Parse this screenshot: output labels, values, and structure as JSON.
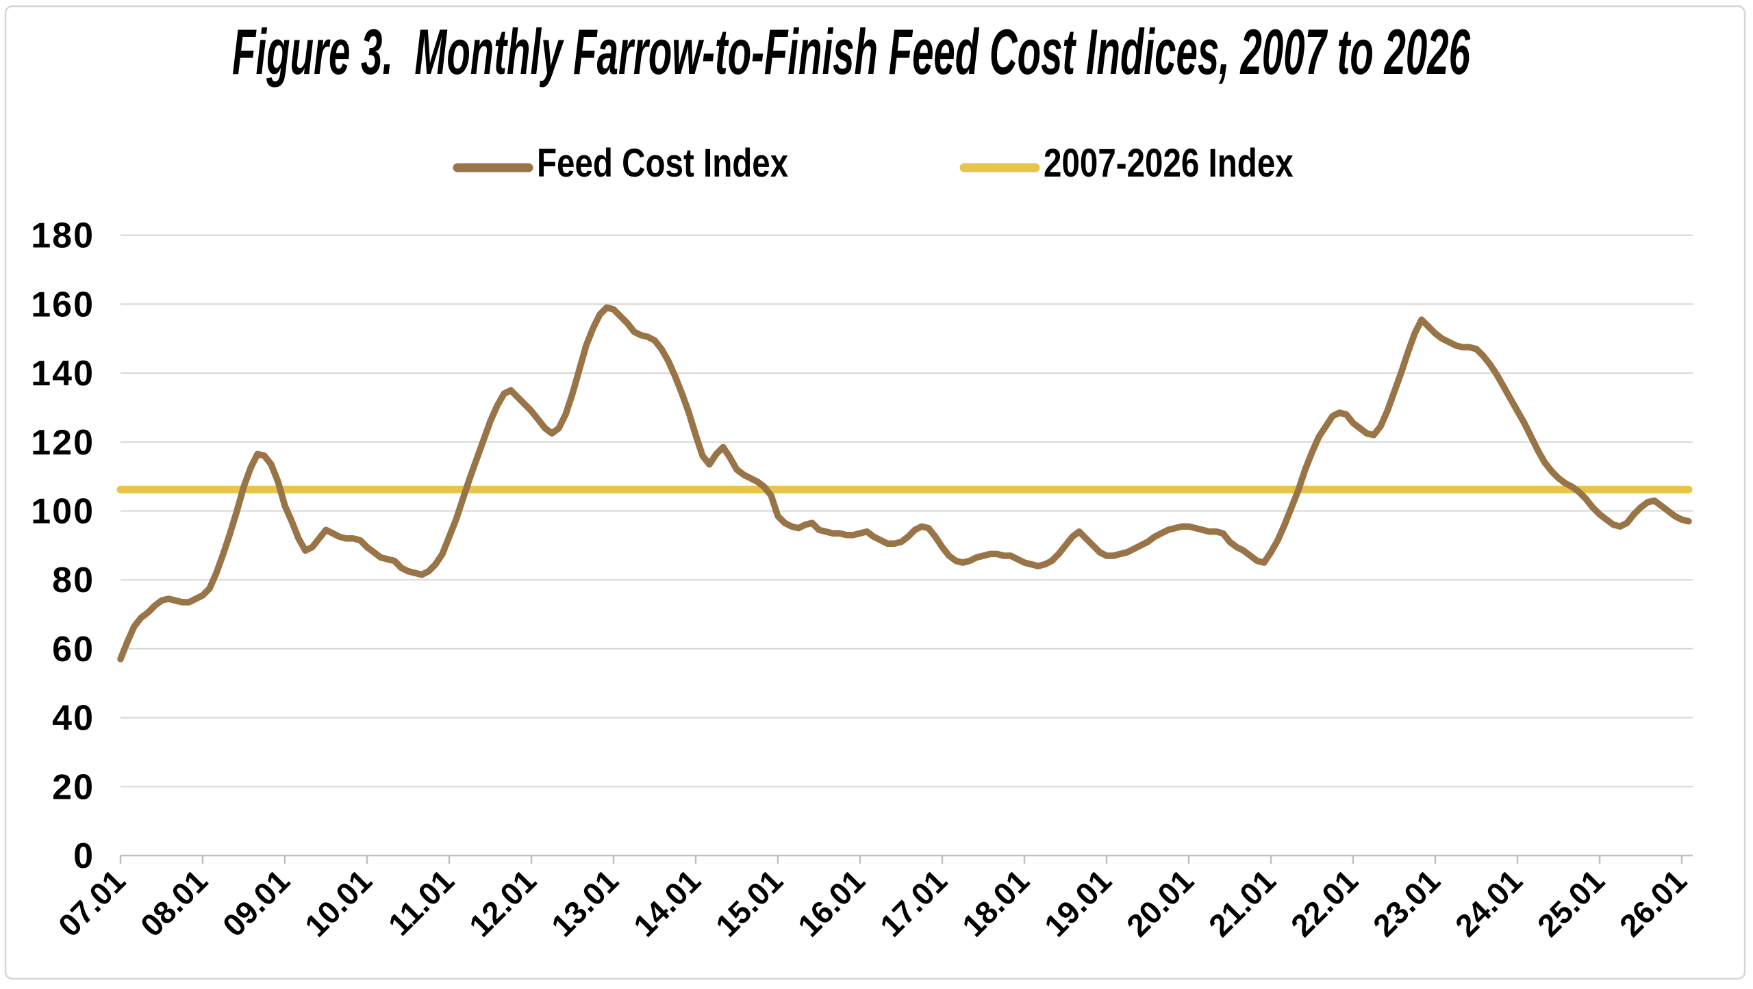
{
  "figure": {
    "title": "Figure 3.  Monthly Farrow-to-Finish Feed Cost Indices, 2007 to 2026"
  },
  "legend": {
    "items": [
      {
        "label": "Feed Cost Index",
        "swatch": "line-swatch",
        "color": "#997447"
      },
      {
        "label": "2007-2026 Index",
        "swatch": "line-swatch",
        "color": "#E7C44A"
      }
    ]
  },
  "colors": {
    "series_feed_cost": "#997447",
    "series_average": "#E7C44A",
    "gridline": "#D9D9D9",
    "axis": "#BFBFBF",
    "frame_border": "#D6D6D6",
    "background": "#FFFFFF",
    "text": "#000000"
  },
  "chart_data": {
    "type": "line",
    "title": "Figure 3.  Monthly Farrow-to-Finish Feed Cost Indices, 2007 to 2026",
    "xlabel": "",
    "ylabel": "",
    "ylim": [
      0,
      180
    ],
    "ytick_step": 20,
    "ytick_labels": [
      "0",
      "20",
      "40",
      "60",
      "80",
      "100",
      "120",
      "140",
      "160",
      "180"
    ],
    "x_tick_labels": [
      "07.01",
      "08.01",
      "09.01",
      "10.01",
      "11.01",
      "12.01",
      "13.01",
      "14.01",
      "15.01",
      "16.01",
      "17.01",
      "18.01",
      "19.01",
      "20.01",
      "21.01",
      "22.01",
      "23.01",
      "24.01",
      "25.01",
      "26.01"
    ],
    "x_start_month": "2007-01",
    "x_end_month": "2026-02",
    "months_per_tick": 12,
    "grid": true,
    "legend_position": "top",
    "series": [
      {
        "name": "Feed Cost Index",
        "color": "#997447",
        "kind": "monthly",
        "values": [
          57,
          62,
          66.5,
          69,
          70.5,
          72.5,
          74,
          74.5,
          74,
          73.5,
          73.5,
          74.5,
          75.5,
          77.5,
          82,
          87.5,
          93.5,
          100,
          107,
          112.5,
          116.5,
          116,
          113.5,
          108.5,
          101.5,
          97,
          92,
          88.5,
          89.5,
          92,
          94.5,
          93.5,
          92.5,
          92,
          92,
          91.5,
          89.5,
          88,
          86.5,
          86,
          85.5,
          83.5,
          82.5,
          82,
          81.5,
          82.5,
          84.5,
          87.5,
          92.5,
          97.5,
          103.5,
          109.5,
          115,
          120.5,
          126,
          130.5,
          134,
          135,
          133,
          131,
          129,
          126.5,
          124,
          122.5,
          124,
          128,
          134,
          141,
          148,
          153,
          157,
          159,
          158.5,
          156.5,
          154.5,
          152,
          151,
          150.5,
          149.5,
          147,
          143.5,
          139,
          134,
          128.5,
          122,
          116,
          113.5,
          116.5,
          118.5,
          115.5,
          112,
          110.5,
          109.5,
          108.5,
          107,
          104.5,
          98.5,
          96.5,
          95.5,
          95,
          96,
          96.5,
          94.5,
          94,
          93.5,
          93.5,
          93,
          93,
          93.5,
          94,
          92.5,
          91.5,
          90.5,
          90.5,
          91,
          92.5,
          94.5,
          95.5,
          95,
          92.5,
          89.5,
          87,
          85.5,
          85,
          85.5,
          86.5,
          87,
          87.5,
          87.5,
          87,
          87,
          86,
          85,
          84.5,
          84,
          84.5,
          85.5,
          87.5,
          90,
          92.5,
          94,
          92,
          90,
          88,
          87,
          87,
          87.5,
          88,
          89,
          90,
          91,
          92.5,
          93.5,
          94.5,
          95,
          95.5,
          95.5,
          95,
          94.5,
          94,
          94,
          93.5,
          91,
          89.5,
          88.5,
          87,
          85.5,
          85,
          88,
          91.5,
          96,
          101,
          106,
          112,
          117,
          121.5,
          124.5,
          127.5,
          128.5,
          128,
          125.5,
          124,
          122.5,
          122,
          124.5,
          129,
          134.5,
          140,
          146,
          151.5,
          155.5,
          153.5,
          151.5,
          150,
          149,
          148,
          147.5,
          147.5,
          147,
          145,
          142.5,
          139.5,
          136,
          132.5,
          129,
          125.5,
          121.5,
          117.5,
          114,
          111.5,
          109.5,
          108,
          107,
          105.5,
          103.5,
          101,
          99,
          97.5,
          96,
          95.5,
          96.5,
          99,
          101,
          102.5,
          103,
          101.5,
          100,
          98.5,
          97.5,
          97
        ]
      },
      {
        "name": "2007-2026 Index",
        "color": "#E7C44A",
        "kind": "constant",
        "value": 106.2
      }
    ]
  }
}
